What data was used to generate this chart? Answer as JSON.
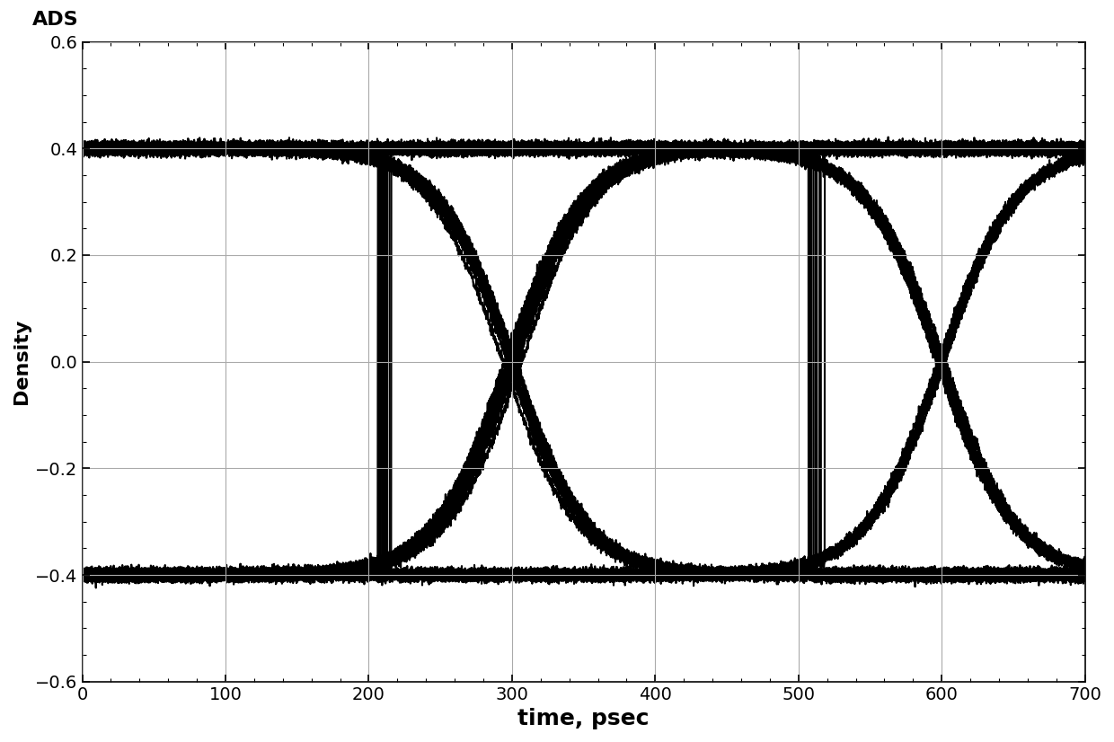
{
  "xlabel": "time, psec",
  "ylabel": "Density",
  "watermark": "ADS",
  "xlim": [
    0,
    700
  ],
  "ylim": [
    -0.6,
    0.6
  ],
  "xticks": [
    0,
    100,
    200,
    300,
    400,
    500,
    600,
    700
  ],
  "yticks": [
    0.6,
    0.4,
    0.2,
    0.0,
    -0.2,
    -0.4,
    -0.6
  ],
  "period": 300,
  "high_level": 0.4,
  "low_level": -0.4,
  "rise_time": 260,
  "line_color": "#000000",
  "bg_color": "#ffffff",
  "grid_color": "#aaaaaa",
  "xlabel_fontsize": 18,
  "ylabel_fontsize": 16,
  "tick_fontsize": 14,
  "watermark_fontsize": 16,
  "lw_main": 1.5,
  "lw_flat": 3.0,
  "alpha_main": 1.0,
  "num_traces": 60,
  "jitter_sigma": 3.0,
  "amp_noise_sigma": 0.005
}
